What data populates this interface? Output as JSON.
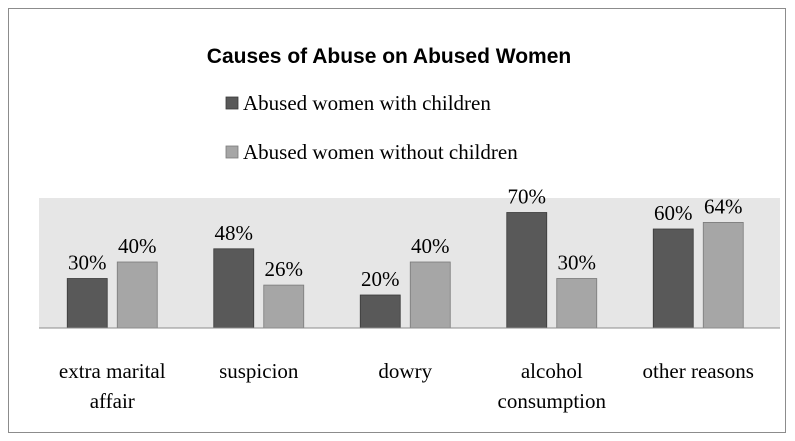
{
  "chart_data": {
    "type": "bar",
    "title": "Causes of Abuse on Abused Women",
    "categories": [
      [
        "extra marital",
        "affair"
      ],
      [
        "suspicion"
      ],
      [
        "dowry"
      ],
      [
        "alcohol",
        "consumption"
      ],
      [
        "other reasons"
      ]
    ],
    "series": [
      {
        "name": "Abused women with children",
        "values": [
          30,
          48,
          20,
          70,
          60
        ],
        "labels": [
          "30%",
          "48%",
          "20%",
          "70%",
          "60%"
        ],
        "color": "#595959"
      },
      {
        "name": "Abused women without children",
        "values": [
          40,
          26,
          40,
          30,
          64
        ],
        "labels": [
          "40%",
          "26%",
          "40%",
          "30%",
          "64%"
        ],
        "color": "#a6a6a6"
      }
    ],
    "ylim": [
      0,
      80
    ],
    "legend_position": "top",
    "plot_background": "#e6e6e6",
    "grid": false,
    "xlabel": "",
    "ylabel": ""
  }
}
